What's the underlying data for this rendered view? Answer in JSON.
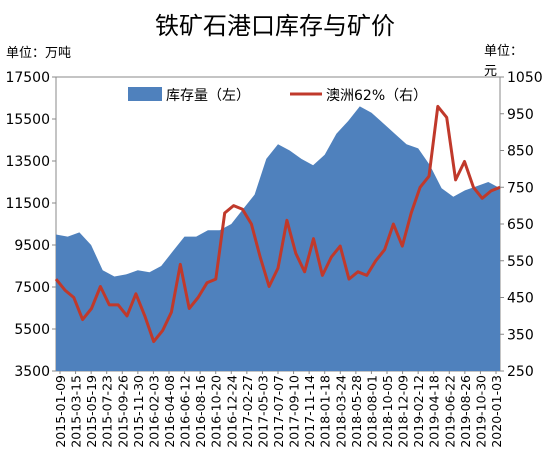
{
  "chart_data": {
    "type": "area+line",
    "title": "铁矿石港口库存与矿价",
    "y_left_unit": "单位：万吨",
    "y_right_unit": "单位：元",
    "y_left": {
      "min": 3500,
      "max": 17500,
      "ticks": [
        "3500",
        "5500",
        "7500",
        "9500",
        "11500",
        "13500",
        "15500",
        "17500"
      ]
    },
    "y_right": {
      "min": 250,
      "max": 1050,
      "ticks": [
        "250",
        "350",
        "450",
        "550",
        "650",
        "750",
        "850",
        "950",
        "1050"
      ]
    },
    "x_labels": [
      "2015-01-09",
      "2015-03-15",
      "2015-05-19",
      "2015-07-23",
      "2015-09-26",
      "2015-11-30",
      "2016-02-03",
      "2016-04-08",
      "2016-06-12",
      "2016-08-16",
      "2016-10-20",
      "2016-12-24",
      "2017-02-27",
      "2017-05-03",
      "2017-07-07",
      "2017-09-10",
      "2017-11-14",
      "2018-01-18",
      "2018-03-24",
      "2018-05-28",
      "2018-08-01",
      "2018-10-05",
      "2018-12-09",
      "2019-02-12",
      "2019-04-18",
      "2019-06-22",
      "2019-08-26",
      "2019-10-30",
      "2020-01-03"
    ],
    "series": [
      {
        "name": "库存量（左）",
        "kind": "area",
        "axis": "left",
        "color": "#4f81bd",
        "values": [
          10000,
          9900,
          10100,
          9500,
          8300,
          8000,
          8100,
          8300,
          8200,
          8500,
          9200,
          9900,
          9900,
          10200,
          10200,
          10500,
          11200,
          11900,
          13600,
          14300,
          14000,
          13600,
          13300,
          13800,
          14800,
          15400,
          16100,
          15800,
          15300,
          14800,
          14300,
          14100,
          13300,
          12200,
          11800,
          12100,
          12300,
          12500,
          12200
        ]
      },
      {
        "name": "澳洲62%（右）",
        "kind": "line",
        "axis": "right",
        "color": "#c0392b",
        "values": [
          500,
          470,
          450,
          390,
          420,
          480,
          430,
          430,
          400,
          460,
          400,
          330,
          360,
          410,
          540,
          420,
          450,
          490,
          500,
          680,
          700,
          690,
          650,
          560,
          480,
          530,
          660,
          570,
          520,
          610,
          510,
          560,
          590,
          500,
          520,
          510,
          550,
          580,
          650,
          590,
          680,
          750,
          780,
          970,
          940,
          770,
          820,
          750,
          720,
          740,
          750
        ]
      }
    ]
  }
}
